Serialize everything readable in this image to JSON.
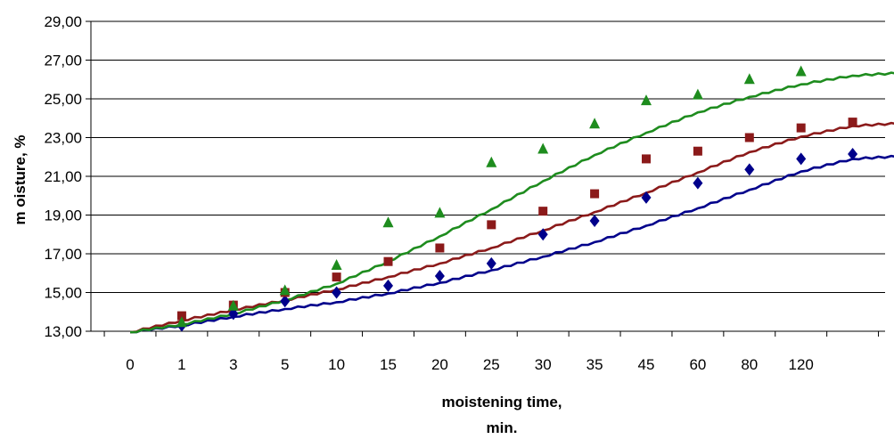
{
  "chart_data": {
    "type": "scatter",
    "title": "",
    "xlabel": [
      "moistening time,",
      "min."
    ],
    "ylabel": "m oisture, %",
    "categories": [
      "0",
      "1",
      "3",
      "5",
      "10",
      "15",
      "20",
      "25",
      "30",
      "35",
      "45",
      "60",
      "80",
      "120"
    ],
    "ylim": [
      13,
      29
    ],
    "yticks": [
      "13,00",
      "15,00",
      "17,00",
      "19,00",
      "21,00",
      "23,00",
      "25,00",
      "27,00",
      "29,00"
    ],
    "grid": "horizontal",
    "legend": "none",
    "series": [
      {
        "marker": "diamond",
        "color": "#00008B",
        "points": [
          [
            1,
            13.3
          ],
          [
            3,
            13.9
          ],
          [
            5,
            14.55
          ],
          [
            10,
            15.0
          ],
          [
            15,
            15.35
          ],
          [
            20,
            15.85
          ],
          [
            25,
            16.5
          ],
          [
            30,
            18.0
          ],
          [
            35,
            18.7
          ],
          [
            45,
            19.9
          ],
          [
            60,
            20.65
          ],
          [
            80,
            21.35
          ],
          [
            120,
            21.9
          ],
          [
            "end",
            22.15
          ]
        ],
        "trend": [
          12.95,
          13.3,
          13.75,
          14.15,
          14.5,
          14.95,
          15.5,
          16.15,
          16.85,
          17.6,
          18.45,
          19.35,
          20.3,
          21.25,
          21.9,
          22.05,
          22.1
        ]
      },
      {
        "marker": "square",
        "color": "#8B1A1A",
        "points": [
          [
            1,
            13.8
          ],
          [
            3,
            14.35
          ],
          [
            5,
            15.0
          ],
          [
            10,
            15.8
          ],
          [
            15,
            16.6
          ],
          [
            20,
            17.3
          ],
          [
            25,
            18.5
          ],
          [
            30,
            19.2
          ],
          [
            35,
            20.1
          ],
          [
            45,
            21.9
          ],
          [
            60,
            22.3
          ],
          [
            80,
            23.0
          ],
          [
            120,
            23.5
          ],
          [
            "end",
            23.8
          ]
        ],
        "trend": [
          12.95,
          13.55,
          14.1,
          14.6,
          15.15,
          15.8,
          16.5,
          17.3,
          18.2,
          19.15,
          20.15,
          21.2,
          22.25,
          23.05,
          23.6,
          23.75,
          23.8
        ]
      },
      {
        "marker": "triangle",
        "color": "#1E8C1E",
        "points": [
          [
            1,
            13.45
          ],
          [
            3,
            14.3
          ],
          [
            5,
            15.1
          ],
          [
            10,
            16.4
          ],
          [
            15,
            18.6
          ],
          [
            20,
            19.1
          ],
          [
            25,
            21.7
          ],
          [
            30,
            22.4
          ],
          [
            35,
            23.7
          ],
          [
            45,
            24.9
          ],
          [
            60,
            25.2
          ],
          [
            80,
            26.0
          ],
          [
            120,
            26.4
          ]
        ],
        "trend": [
          12.95,
          13.35,
          13.9,
          14.6,
          15.45,
          16.6,
          17.9,
          19.3,
          20.75,
          22.1,
          23.25,
          24.3,
          25.1,
          25.75,
          26.2,
          26.35
        ]
      }
    ]
  }
}
